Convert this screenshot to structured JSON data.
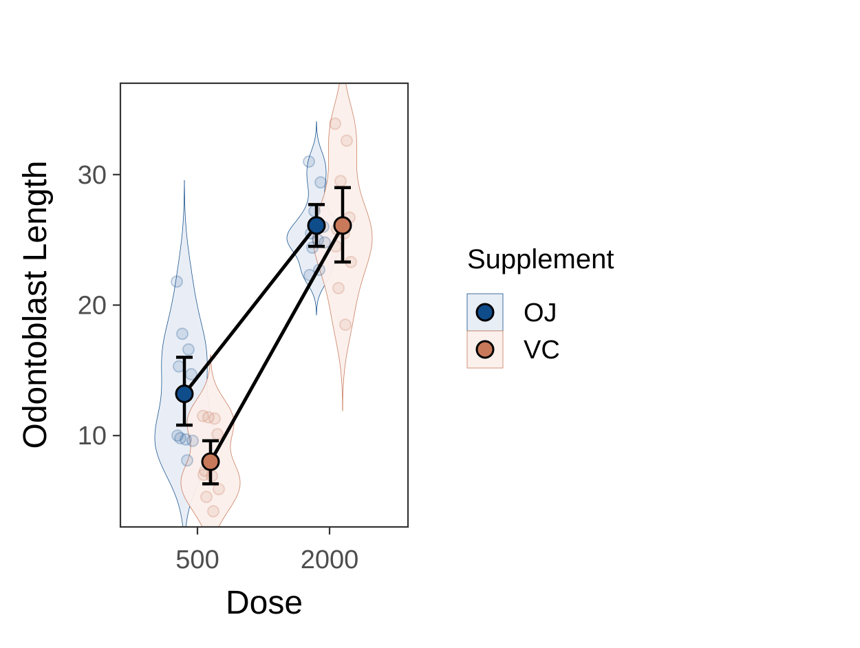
{
  "chart_data": {
    "type": "violin",
    "xlabel": "Dose",
    "ylabel": "Odontoblast Length",
    "x_ticks": [
      "500",
      "2000"
    ],
    "y_ticks": [
      10,
      20,
      30
    ],
    "ylim": [
      3,
      37
    ],
    "grid": false,
    "legend": {
      "title": "Supplement",
      "position": "right"
    },
    "series": [
      {
        "name": "OJ",
        "color": "#0f4c8a",
        "fill": "#e8eef6",
        "points": [
          {
            "x": "500",
            "mean": 13.2,
            "ci_low": 10.8,
            "ci_high": 16.0,
            "raw": [
              21.8,
              16.6,
              17.8,
              14.7,
              15.3,
              9.7,
              9.6,
              9.8,
              8.1,
              10.0
            ]
          },
          {
            "x": "2000",
            "mean": 26.1,
            "ci_low": 24.5,
            "ci_high": 27.7,
            "raw": [
              31.0,
              29.4,
              27.2,
              26.0,
              25.5,
              25.0,
              24.8,
              24.4,
              22.7,
              22.3
            ]
          }
        ]
      },
      {
        "name": "VC",
        "color": "#c8795a",
        "fill": "#fbf0ec",
        "points": [
          {
            "x": "500",
            "mean": 8.0,
            "ci_low": 6.3,
            "ci_high": 9.6,
            "raw": [
              11.5,
              11.3,
              11.4,
              10.1,
              7.3,
              6.9,
              5.9,
              5.3,
              4.2,
              7.0
            ]
          },
          {
            "x": "2000",
            "mean": 26.1,
            "ci_low": 23.3,
            "ci_high": 29.0,
            "raw": [
              33.9,
              32.6,
              29.5,
              26.7,
              25.8,
              25.5,
              23.3,
              21.3,
              18.5,
              24.5
            ]
          }
        ]
      }
    ]
  }
}
